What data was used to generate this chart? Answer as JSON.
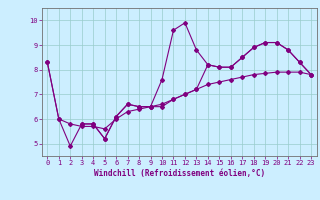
{
  "xlabel": "Windchill (Refroidissement éolien,°C)",
  "bg_color": "#cceeff",
  "line_color": "#800080",
  "grid_color": "#99cccc",
  "xlim": [
    -0.5,
    23.5
  ],
  "ylim": [
    4.5,
    10.5
  ],
  "yticks": [
    5,
    6,
    7,
    8,
    9,
    10
  ],
  "xticks": [
    0,
    1,
    2,
    3,
    4,
    5,
    6,
    7,
    8,
    9,
    10,
    11,
    12,
    13,
    14,
    15,
    16,
    17,
    18,
    19,
    20,
    21,
    22,
    23
  ],
  "line1_x": [
    0,
    1,
    2,
    3,
    4,
    5,
    6,
    7,
    8,
    9,
    10,
    11,
    12,
    13,
    14,
    15,
    16,
    17,
    18,
    19,
    20,
    21,
    22,
    23
  ],
  "line1_y": [
    8.3,
    6.0,
    4.9,
    5.8,
    5.8,
    5.2,
    6.1,
    6.6,
    6.5,
    6.5,
    7.6,
    9.6,
    9.9,
    8.8,
    8.2,
    8.1,
    8.1,
    8.5,
    8.9,
    9.1,
    9.1,
    8.8,
    8.3,
    7.8
  ],
  "line2_x": [
    0,
    1,
    2,
    3,
    4,
    5,
    6,
    7,
    8,
    9,
    10,
    11,
    12,
    13,
    14,
    15,
    16,
    17,
    18,
    19,
    20,
    21,
    22,
    23
  ],
  "line2_y": [
    8.3,
    6.0,
    5.8,
    5.7,
    5.7,
    5.6,
    6.0,
    6.3,
    6.4,
    6.5,
    6.6,
    6.8,
    7.0,
    7.2,
    7.4,
    7.5,
    7.6,
    7.7,
    7.8,
    7.85,
    7.9,
    7.9,
    7.9,
    7.8
  ],
  "line3_x": [
    3,
    4,
    5,
    6,
    7,
    8,
    9,
    10,
    11,
    12,
    13,
    14,
    15,
    16,
    17,
    18,
    19,
    20,
    21,
    22,
    23
  ],
  "line3_y": [
    5.8,
    5.8,
    5.2,
    6.1,
    6.6,
    6.5,
    6.5,
    6.5,
    6.8,
    7.0,
    7.2,
    8.2,
    8.1,
    8.1,
    8.5,
    8.9,
    9.1,
    9.1,
    8.8,
    8.3,
    7.8
  ],
  "xlabel_fontsize": 5.5,
  "tick_fontsize": 5
}
